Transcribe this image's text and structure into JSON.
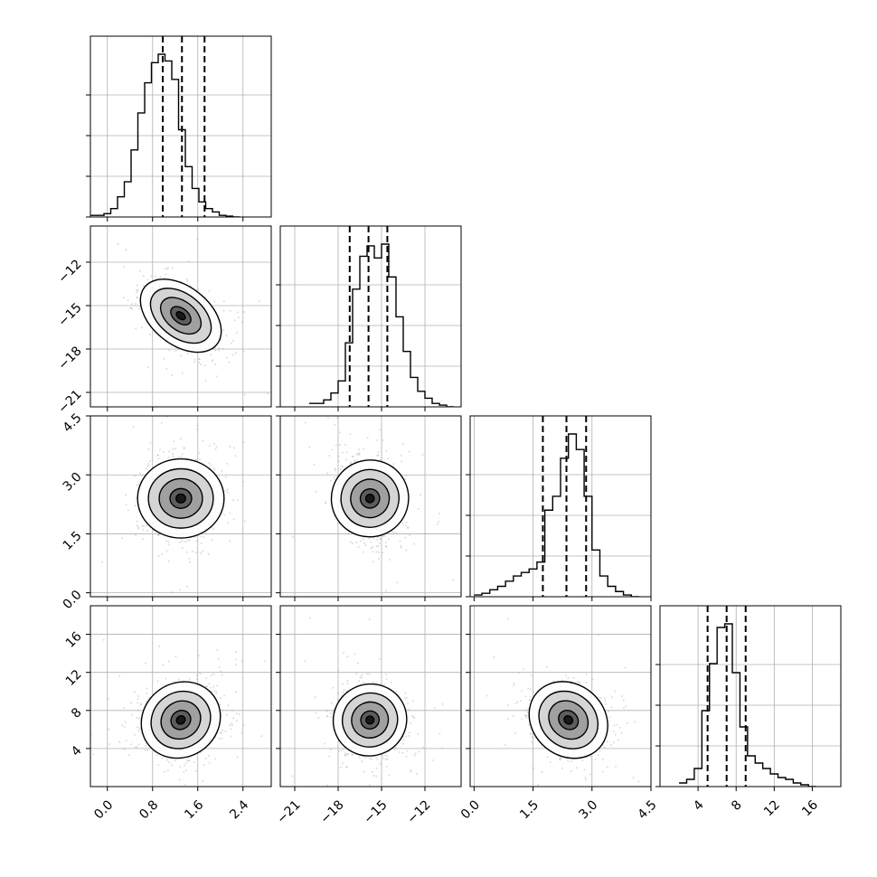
{
  "chart_data": {
    "type": "corner",
    "grid": true,
    "parameters": [
      {
        "ticks": [
          0.0,
          0.8,
          1.6,
          2.4
        ],
        "tick_labels": [
          "0.0",
          "0.8",
          "1.6",
          "2.4"
        ],
        "range": [
          -0.3,
          2.9
        ],
        "quantiles": [
          0.98,
          1.32,
          1.72
        ],
        "hist": {
          "start": -0.3,
          "width": 0.12,
          "counts": [
            0.01,
            0.01,
            0.02,
            0.05,
            0.12,
            0.21,
            0.4,
            0.62,
            0.8,
            0.92,
            0.97,
            0.93,
            0.82,
            0.52,
            0.3,
            0.17,
            0.09,
            0.05,
            0.03,
            0.01,
            0.005,
            0.0
          ]
        }
      },
      {
        "ticks": [
          -21,
          -18,
          -15,
          -12
        ],
        "tick_labels": [
          "−21",
          "−18",
          "−15",
          "−12"
        ],
        "range": [
          -22.0,
          -9.5
        ],
        "quantiles": [
          -17.2,
          -15.9,
          -14.6
        ],
        "hist": {
          "start": -20.0,
          "width": 0.5,
          "counts": [
            0.02,
            0.02,
            0.04,
            0.08,
            0.15,
            0.37,
            0.68,
            0.87,
            0.93,
            0.86,
            0.94,
            0.75,
            0.52,
            0.32,
            0.17,
            0.09,
            0.05,
            0.02,
            0.01,
            0.0
          ]
        }
      },
      {
        "ticks": [
          0.0,
          1.5,
          3.0,
          4.5
        ],
        "tick_labels": [
          "0.0",
          "1.5",
          "3.0",
          "4.5"
        ],
        "range": [
          -0.1,
          4.5
        ],
        "quantiles": [
          1.75,
          2.35,
          2.85
        ],
        "hist": {
          "start": 0.0,
          "width": 0.2,
          "counts": [
            0.01,
            0.02,
            0.04,
            0.06,
            0.09,
            0.12,
            0.14,
            0.16,
            0.2,
            0.5,
            0.58,
            0.8,
            0.94,
            0.85,
            0.58,
            0.27,
            0.12,
            0.06,
            0.03,
            0.01,
            0.0
          ]
        }
      },
      {
        "ticks": [
          4,
          8,
          12,
          16
        ],
        "tick_labels": [
          "4",
          "8",
          "12",
          "16"
        ],
        "range": [
          0.0,
          19.0
        ],
        "quantiles": [
          5.0,
          7.0,
          9.0
        ],
        "hist": {
          "start": 2.0,
          "width": 0.8,
          "counts": [
            0.02,
            0.04,
            0.1,
            0.42,
            0.68,
            0.88,
            0.9,
            0.63,
            0.33,
            0.17,
            0.13,
            0.1,
            0.07,
            0.05,
            0.04,
            0.02,
            0.01,
            0.0
          ]
        }
      }
    ],
    "pairs": [
      {
        "row": 1,
        "col": 0,
        "mean": [
          1.3,
          -15.7
        ],
        "sd": [
          0.35,
          1.2
        ],
        "rho": -0.55
      },
      {
        "row": 2,
        "col": 0,
        "mean": [
          1.3,
          2.4
        ],
        "sd": [
          0.35,
          0.55
        ],
        "rho": 0.0
      },
      {
        "row": 2,
        "col": 1,
        "mean": [
          -15.8,
          2.4
        ],
        "sd": [
          1.2,
          0.55
        ],
        "rho": -0.35
      },
      {
        "row": 3,
        "col": 0,
        "mean": [
          1.3,
          7.0
        ],
        "sd": [
          0.35,
          2.0
        ],
        "rho": 0.1
      },
      {
        "row": 3,
        "col": 1,
        "mean": [
          -15.8,
          7.0
        ],
        "sd": [
          1.2,
          2.0
        ],
        "rho": -0.1
      },
      {
        "row": 3,
        "col": 2,
        "mean": [
          2.4,
          7.0
        ],
        "sd": [
          0.5,
          2.0
        ],
        "rho": -0.2
      }
    ]
  }
}
